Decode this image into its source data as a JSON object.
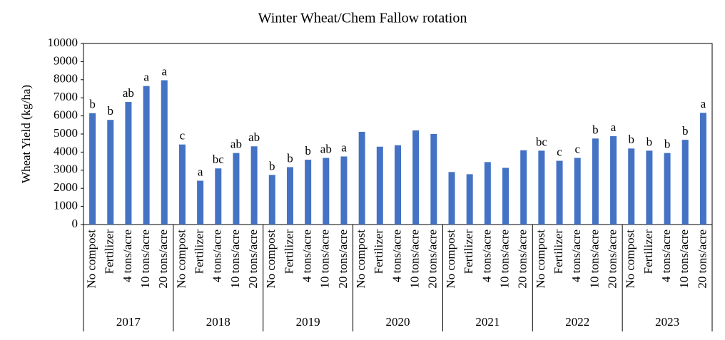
{
  "chart_data": {
    "type": "bar",
    "title": "Winter Wheat/Chem Fallow rotation",
    "y_label": "Wheat Yield (kg/ha)",
    "color": "#4472c4",
    "ylim": [
      0,
      10000
    ],
    "yticks": [
      0,
      1000,
      2000,
      3000,
      4000,
      5000,
      6000,
      7000,
      8000,
      9000,
      10000
    ],
    "grid": false,
    "groups": [
      {
        "label": "2017",
        "categories": [
          "No compost",
          "Fertilizer",
          "4 tons/acre",
          "10 tons/acre",
          "20 tons/acre"
        ],
        "values": [
          6150,
          5780,
          6770,
          7650,
          7970
        ],
        "letters": [
          "b",
          "b",
          "ab",
          "a",
          "a"
        ]
      },
      {
        "label": "2018",
        "categories": [
          "No compost",
          "Fertilizer",
          "4 tons/acre",
          "10 tons/acre",
          "20 tons/acre"
        ],
        "values": [
          4420,
          2420,
          3100,
          3950,
          4320
        ],
        "letters": [
          "c",
          "a",
          "bc",
          "ab",
          "ab"
        ]
      },
      {
        "label": "2019",
        "categories": [
          "No compost",
          "Fertilizer",
          "4 tons/acre",
          "10 tons/acre",
          "20 tons/acre"
        ],
        "values": [
          2740,
          3170,
          3580,
          3680,
          3760
        ],
        "letters": [
          "b",
          "b",
          "b",
          "ab",
          "a"
        ]
      },
      {
        "label": "2020",
        "categories": [
          "No compost",
          "Fertilizer",
          "4 tons/acre",
          "10 tons/acre",
          "20 tons/acre"
        ],
        "values": [
          5120,
          4300,
          4380,
          5200,
          5000
        ]
      },
      {
        "label": "2021",
        "categories": [
          "No compost",
          "Fertilizer",
          "4 tons/acre",
          "10 tons/acre",
          "20 tons/acre"
        ],
        "values": [
          2900,
          2780,
          3450,
          3130,
          4100
        ]
      },
      {
        "label": "2022",
        "categories": [
          "No compost",
          "Fertilizer",
          "4 tons/acre",
          "10 tons/acre",
          "20 tons/acre"
        ],
        "values": [
          4080,
          3520,
          3680,
          4750,
          4880
        ],
        "letters": [
          "bc",
          "c",
          "c",
          "b",
          "a"
        ]
      },
      {
        "label": "2023",
        "categories": [
          "No compost",
          "Fertilizer",
          "4 tons/acre",
          "10 tons/acre",
          "20 tons/acre"
        ],
        "values": [
          4200,
          4080,
          3950,
          4680,
          6170
        ],
        "letters": [
          "b",
          "b",
          "b",
          "b",
          "a"
        ]
      }
    ]
  }
}
